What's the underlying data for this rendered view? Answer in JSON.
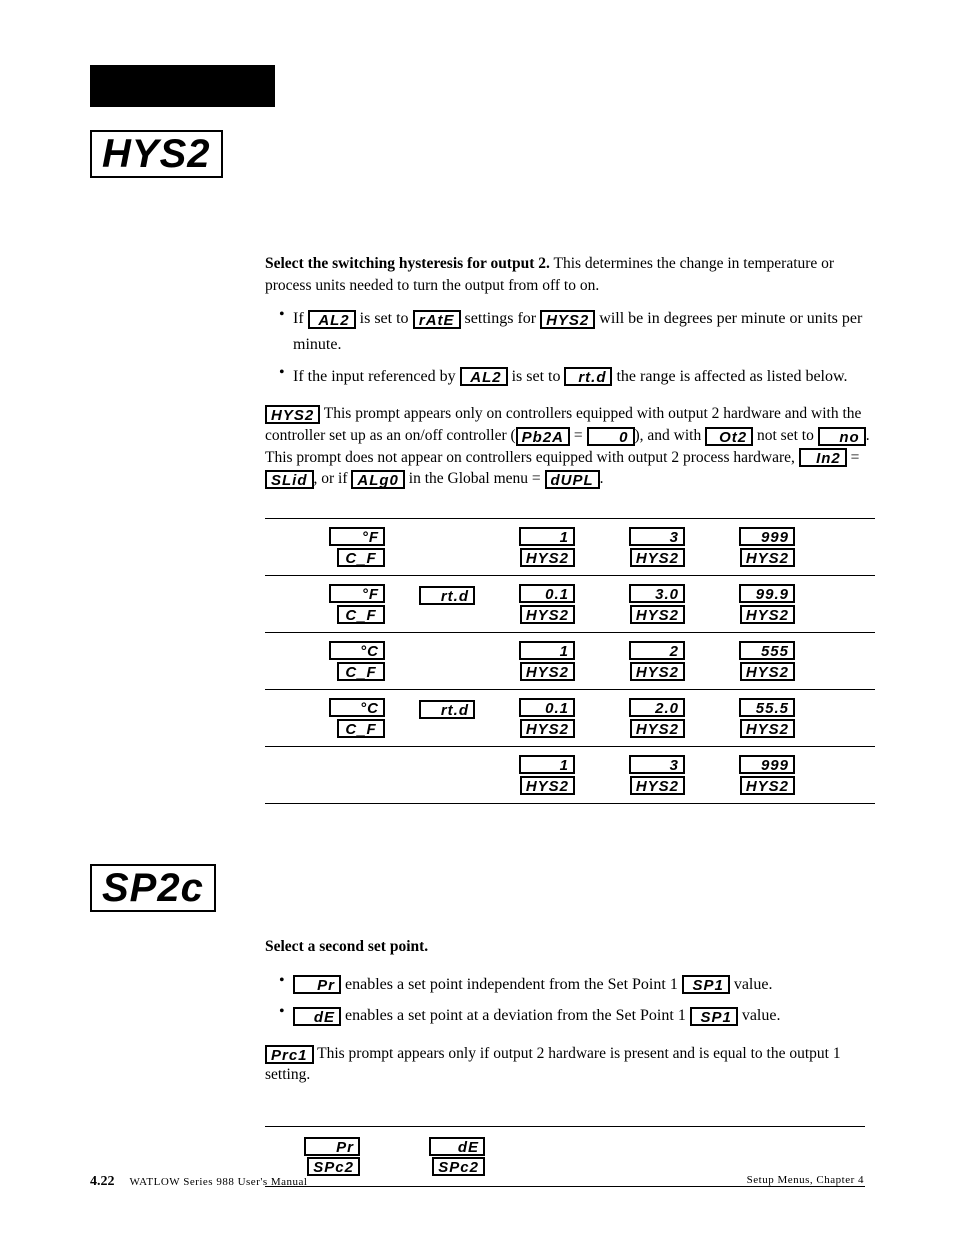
{
  "page": {
    "number": "4.22",
    "manual": "WATLOW Series 988 User's Manual",
    "chapter": "Setup Menus, Chapter 4"
  },
  "hys2": {
    "display": "HYS2",
    "heading": "Select the switching hysteresis for output 2.",
    "heading_rest": " This determines the change in temperature or process units needed to turn the output from off to on.",
    "bullet1_pre": "If ",
    "bullet1_seg1": "AL2",
    "bullet1_mid1": " is set to ",
    "bullet1_seg2": "rAtE",
    "bullet1_mid2": " settings for ",
    "bullet1_seg3": "HYS2",
    "bullet1_post": " will be in degrees per minute or units per minute.",
    "bullet2_pre": "If the input referenced by ",
    "bullet2_seg1": "AL2",
    "bullet2_mid1": " is set to ",
    "bullet2_seg2": "rt.d",
    "bullet2_post": " the range is affected as listed below.",
    "cond_seg1": "HYS2",
    "cond_t1": " This prompt appears only on controllers equipped with output 2 hardware and with the controller set up as an on/off controller (",
    "cond_seg2": "Pb2A",
    "cond_t2": " = ",
    "cond_seg3": "0",
    "cond_t3": "), and with ",
    "cond_seg4": "Ot2",
    "cond_t4": " not set to ",
    "cond_seg5": "no",
    "cond_t5": ".  This prompt does not appear on controllers equipped with output 2 process hardware, ",
    "cond_seg6": "In2",
    "cond_t6": " = ",
    "cond_seg7": "SLid",
    "cond_t7": ", or if ",
    "cond_seg8": "ALg0",
    "cond_t8": " in the Global menu = ",
    "cond_seg9": "dUPL",
    "cond_t9": "."
  },
  "table": {
    "rows": [
      {
        "unit1": "°F",
        "unit2": "C_F",
        "rtd": "",
        "low": "1",
        "def": "3",
        "hi": "999",
        "lbl": "HYS2"
      },
      {
        "unit1": "°F",
        "unit2": "C_F",
        "rtd": "rt.d",
        "low": "0.1",
        "def": "3.0",
        "hi": "99.9",
        "lbl": "HYS2"
      },
      {
        "unit1": "°C",
        "unit2": "C_F",
        "rtd": "",
        "low": "1",
        "def": "2",
        "hi": "555",
        "lbl": "HYS2"
      },
      {
        "unit1": "°C",
        "unit2": "C_F",
        "rtd": "rt.d",
        "low": "0.1",
        "def": "2.0",
        "hi": "55.5",
        "lbl": "HYS2"
      },
      {
        "unit1": "",
        "unit2": "",
        "rtd": "",
        "low": "1",
        "def": "3",
        "hi": "999",
        "lbl": "HYS2"
      }
    ]
  },
  "sp2c": {
    "display": "SP2c",
    "heading": "Select a second set point.",
    "b1_seg": "Pr",
    "b1_txt": " enables a set point independent from the Set Point 1 ",
    "b1_seg2": "SP1",
    "b1_end": " value.",
    "b2_seg": "dE",
    "b2_txt": " enables a set point at a deviation from the Set Point 1 ",
    "b2_seg2": "SP1",
    "b2_end": " value.",
    "cond_seg": "Prc1",
    "cond_txt": " This prompt appears only if output 2 hardware is present and is equal to the output 1 setting."
  },
  "table2": {
    "c1_top": "Pr",
    "c1_bot": "SPc2",
    "c2_top": "dE",
    "c2_bot": "SPc2"
  },
  "style": {
    "bg": "#ffffff",
    "fg": "#000000",
    "body_font_size": 15.5,
    "seg_large_font_size": 40,
    "seg_small_font_size": 15
  }
}
